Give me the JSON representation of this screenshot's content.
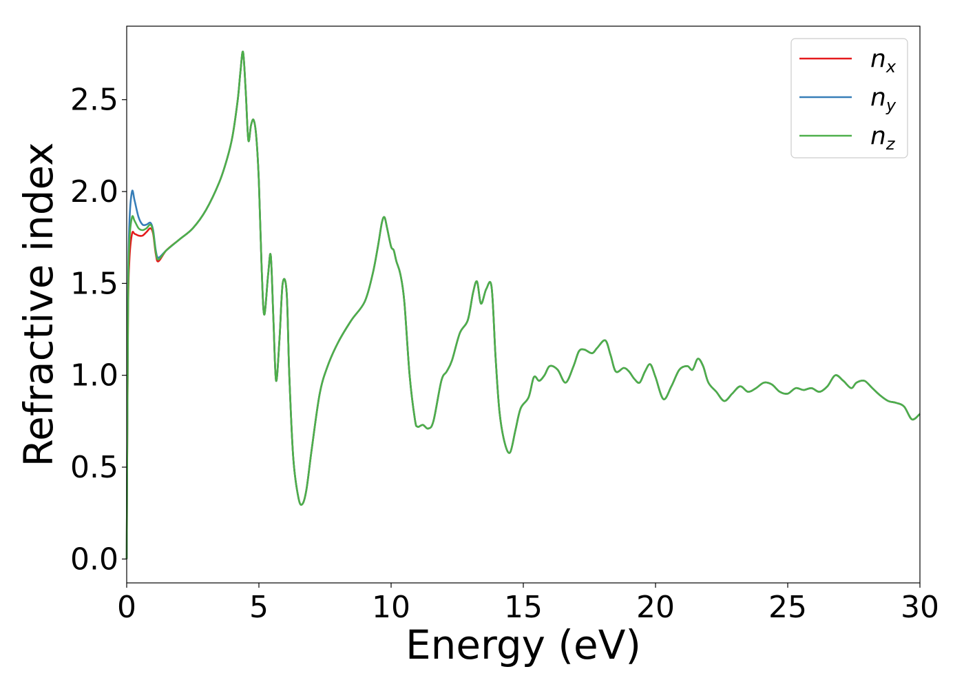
{
  "chart_data": {
    "type": "line",
    "xlabel": "Energy (eV)",
    "ylabel": "Refractive index",
    "xlim": [
      0,
      30
    ],
    "ylim": [
      -0.13,
      2.9
    ],
    "xticks": [
      "0",
      "5",
      "10",
      "15",
      "20",
      "25",
      "30"
    ],
    "yticks": [
      "0.0",
      "0.5",
      "1.0",
      "1.5",
      "2.0",
      "2.5"
    ],
    "grid": false,
    "legend_position": "top-right",
    "series": [
      {
        "name": "n_x",
        "label_base": "n",
        "label_sub": "x",
        "color": "#e41a1c",
        "x": [
          0,
          0.05,
          0.1,
          0.2,
          0.3,
          0.45,
          0.6,
          0.75,
          0.9,
          1.0,
          1.1,
          1.2
        ],
        "y": [
          0.0,
          1.3,
          1.62,
          1.77,
          1.77,
          1.76,
          1.76,
          1.78,
          1.8,
          1.77,
          1.66,
          1.62
        ]
      },
      {
        "name": "n_y",
        "label_base": "n",
        "label_sub": "y",
        "color": "#377eb8",
        "x": [
          0,
          0.05,
          0.1,
          0.2,
          0.3,
          0.45,
          0.6,
          0.75,
          0.9,
          1.0,
          1.1,
          1.2
        ],
        "y": [
          0.0,
          1.4,
          1.82,
          2.0,
          1.95,
          1.86,
          1.82,
          1.82,
          1.83,
          1.79,
          1.68,
          1.64
        ]
      },
      {
        "name": "n_z",
        "label_base": "n",
        "label_sub": "z",
        "color": "#4daf4a",
        "x": [
          0,
          0.05,
          0.1,
          0.2,
          0.3,
          0.45,
          0.6,
          0.75,
          0.9,
          1.0,
          1.1,
          1.2
        ],
        "y": [
          0.0,
          1.35,
          1.72,
          1.86,
          1.84,
          1.8,
          1.79,
          1.8,
          1.82,
          1.78,
          1.67,
          1.63
        ]
      }
    ],
    "shared_tail": {
      "x": [
        1.2,
        1.5,
        2.0,
        2.5,
        3.0,
        3.5,
        3.8,
        4.0,
        4.2,
        4.3,
        4.4,
        4.5,
        4.6,
        4.7,
        4.8,
        4.9,
        5.0,
        5.1,
        5.2,
        5.35,
        5.45,
        5.55,
        5.65,
        5.78,
        5.9,
        6.05,
        6.15,
        6.3,
        6.5,
        6.65,
        6.8,
        7.0,
        7.3,
        7.6,
        8.0,
        8.5,
        9.0,
        9.3,
        9.5,
        9.65,
        9.75,
        9.85,
        10.0,
        10.1,
        10.2,
        10.35,
        10.5,
        10.7,
        10.9,
        11.0,
        11.2,
        11.4,
        11.6,
        11.9,
        12.1,
        12.3,
        12.6,
        12.9,
        13.1,
        13.25,
        13.4,
        13.6,
        13.8,
        13.95,
        14.1,
        14.3,
        14.5,
        14.7,
        14.9,
        15.2,
        15.4,
        15.6,
        15.8,
        16.0,
        16.3,
        16.6,
        16.9,
        17.1,
        17.3,
        17.6,
        17.8,
        18.1,
        18.3,
        18.5,
        18.8,
        19.0,
        19.2,
        19.4,
        19.6,
        19.8,
        20.0,
        20.3,
        20.6,
        20.9,
        21.2,
        21.4,
        21.6,
        21.8,
        22.0,
        22.3,
        22.6,
        22.9,
        23.2,
        23.5,
        23.8,
        24.1,
        24.4,
        24.7,
        25.0,
        25.3,
        25.6,
        25.9,
        26.2,
        26.5,
        26.8,
        27.1,
        27.4,
        27.6,
        27.9,
        28.2,
        28.5,
        28.8,
        29.1,
        29.4,
        29.7,
        30.0
      ],
      "y": [
        1.63,
        1.68,
        1.74,
        1.8,
        1.9,
        2.05,
        2.18,
        2.3,
        2.5,
        2.65,
        2.76,
        2.55,
        2.28,
        2.36,
        2.39,
        2.3,
        2.05,
        1.6,
        1.33,
        1.55,
        1.65,
        1.3,
        0.97,
        1.2,
        1.5,
        1.45,
        1.0,
        0.55,
        0.33,
        0.3,
        0.38,
        0.6,
        0.9,
        1.05,
        1.18,
        1.3,
        1.4,
        1.55,
        1.7,
        1.83,
        1.86,
        1.8,
        1.7,
        1.68,
        1.62,
        1.55,
        1.4,
        1.0,
        0.76,
        0.72,
        0.73,
        0.71,
        0.75,
        0.97,
        1.02,
        1.08,
        1.23,
        1.3,
        1.45,
        1.51,
        1.39,
        1.47,
        1.48,
        1.1,
        0.8,
        0.63,
        0.58,
        0.7,
        0.82,
        0.88,
        0.99,
        0.97,
        1.0,
        1.05,
        1.03,
        0.96,
        1.05,
        1.13,
        1.14,
        1.12,
        1.15,
        1.19,
        1.11,
        1.02,
        1.04,
        1.02,
        0.98,
        0.96,
        1.02,
        1.06,
        0.99,
        0.87,
        0.94,
        1.03,
        1.05,
        1.03,
        1.09,
        1.05,
        0.96,
        0.91,
        0.86,
        0.9,
        0.94,
        0.91,
        0.93,
        0.96,
        0.95,
        0.91,
        0.9,
        0.93,
        0.92,
        0.93,
        0.91,
        0.94,
        1.0,
        0.97,
        0.93,
        0.96,
        0.97,
        0.93,
        0.89,
        0.86,
        0.85,
        0.83,
        0.76,
        0.79
      ]
    }
  }
}
